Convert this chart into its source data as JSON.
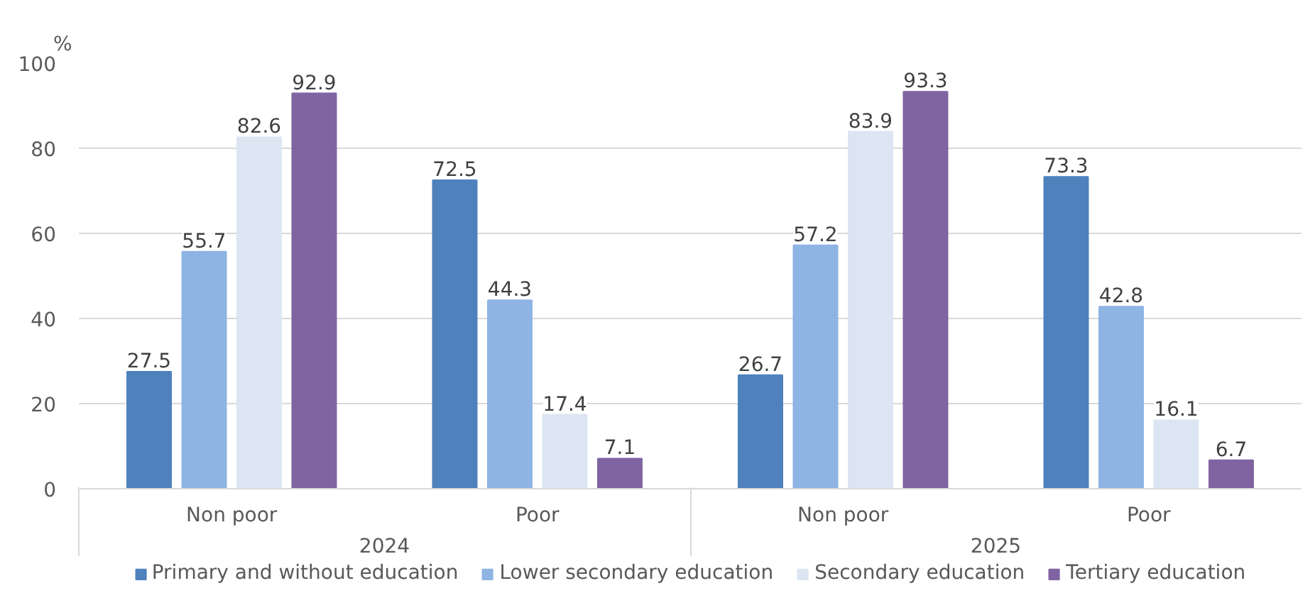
{
  "chart_data": {
    "type": "bar",
    "ylabel": "%",
    "categories": [
      "Non poor",
      "Poor",
      "Non poor",
      "Poor"
    ],
    "annotations": [
      "2024",
      "2025"
    ],
    "series": [
      {
        "name": "Primary and without education",
        "color": "#4f81bd",
        "values": [
          27.5,
          72.5,
          26.7,
          73.3
        ]
      },
      {
        "name": "Lower secondary education",
        "color": "#8eb4e3",
        "values": [
          55.7,
          44.3,
          57.2,
          42.8
        ]
      },
      {
        "name": "Secondary education",
        "color": "#dce6f2",
        "values": [
          82.6,
          17.4,
          83.9,
          16.1
        ]
      },
      {
        "name": "Tertiary education",
        "color": "#8064a2",
        "values": [
          92.9,
          7.1,
          93.3,
          6.7
        ]
      }
    ],
    "ylim": [
      0,
      100
    ],
    "yticks": [
      0,
      20,
      40,
      60,
      80,
      100
    ],
    "grid": "y",
    "legend": "bottom",
    "data_labels": true
  }
}
